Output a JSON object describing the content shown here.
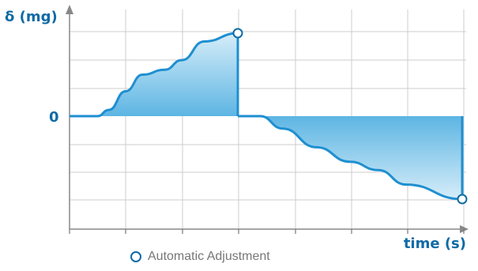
{
  "chart_data": {
    "type": "area",
    "ylabel": "δ (mg)",
    "xlabel": "time (s)",
    "y_tick_labels": [
      "0"
    ],
    "legend": {
      "label": "Automatic Adjustment",
      "marker": "hollow-circle",
      "placement": "bottom-center"
    },
    "grid": true,
    "xlim": [
      0,
      7
    ],
    "ylim": [
      -2,
      2
    ],
    "series": [
      {
        "points": [
          [
            0,
            0
          ],
          [
            0.5,
            0
          ],
          [
            0.7,
            0.15
          ],
          [
            1.0,
            0.6
          ],
          [
            1.3,
            1.0
          ],
          [
            1.7,
            1.12
          ],
          [
            2.0,
            1.35
          ],
          [
            2.4,
            1.8
          ],
          [
            3.0,
            2.0
          ],
          [
            3.0,
            0
          ],
          [
            3.4,
            0
          ],
          [
            3.8,
            -0.3
          ],
          [
            4.4,
            -0.75
          ],
          [
            5.0,
            -1.1
          ],
          [
            5.5,
            -1.3
          ],
          [
            6.0,
            -1.65
          ],
          [
            7.0,
            -2.0
          ],
          [
            7.0,
            0
          ]
        ],
        "markers": [
          [
            3.0,
            2.0
          ],
          [
            7.0,
            -2.0
          ]
        ]
      }
    ],
    "colors": {
      "line": "#1f8fd0",
      "axis_text": "#0f6aa6",
      "fill_top": "#d6edf9",
      "fill_bottom": "#5db5e3",
      "grid": "#cccccc"
    }
  }
}
